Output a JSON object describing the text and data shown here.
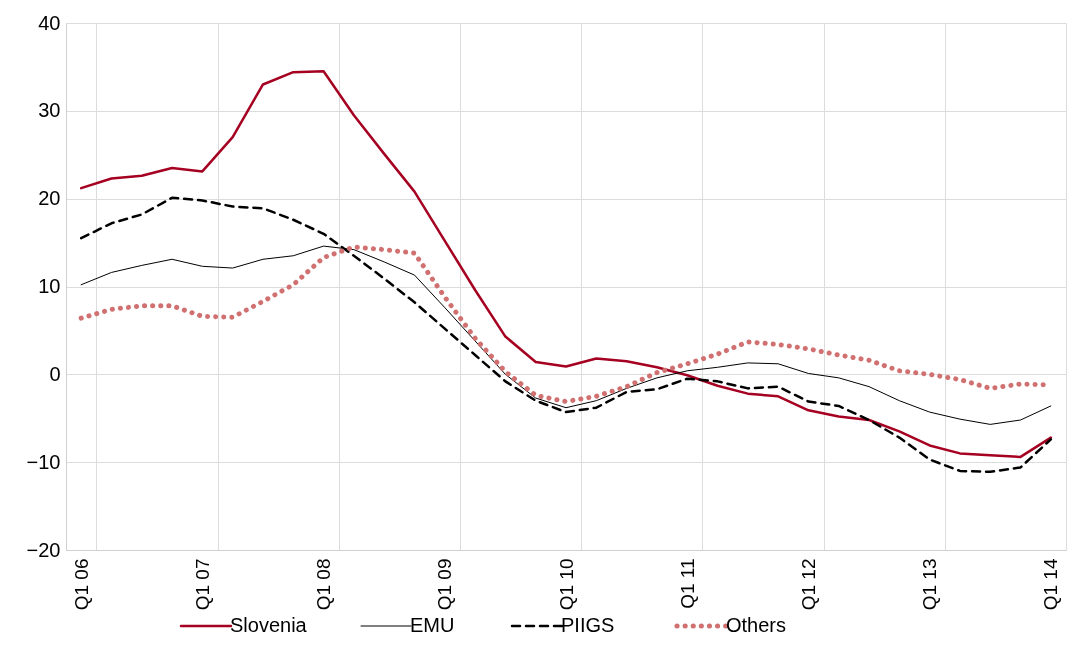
{
  "chart_data": {
    "type": "line",
    "categories": [
      "Q1 06",
      null,
      null,
      null,
      "Q1 07",
      null,
      null,
      null,
      "Q1 08",
      null,
      null,
      null,
      "Q1 09",
      null,
      null,
      null,
      "Q1 10",
      null,
      null,
      null,
      "Q1 11",
      null,
      null,
      null,
      "Q1 12",
      null,
      null,
      null,
      "Q1 13",
      null,
      null,
      null,
      "Q1 14"
    ],
    "series": [
      {
        "name": "Slovenia",
        "color": "#a50021",
        "line_style": "solid",
        "values": [
          21.2,
          22.3,
          22.6,
          23.5,
          23.1,
          27.0,
          33.0,
          34.4,
          34.5,
          29.5,
          25.1,
          20.8,
          15.2,
          9.6,
          4.3,
          1.4,
          0.9,
          1.8,
          1.5,
          0.8,
          -0.1,
          -1.3,
          -2.2,
          -2.5,
          -4.1,
          -4.8,
          -5.2,
          -6.5,
          -8.1,
          -9.0,
          -9.2,
          -9.4,
          -7.2
        ]
      },
      {
        "name": "EMU",
        "color": "#000000",
        "line_style": "solid",
        "values": [
          10.2,
          11.6,
          12.4,
          13.1,
          12.3,
          12.1,
          13.1,
          13.5,
          14.6,
          14.2,
          12.8,
          11.3,
          7.6,
          3.8,
          0.0,
          -2.7,
          -3.8,
          -3.0,
          -1.6,
          -0.4,
          0.4,
          0.8,
          1.3,
          1.2,
          0.1,
          -0.4,
          -1.4,
          -3.0,
          -4.3,
          -5.1,
          -5.7,
          -5.2,
          -3.6
        ]
      },
      {
        "name": "PIIGS",
        "color": "#000000",
        "line_style": "dashed",
        "values": [
          15.5,
          17.2,
          18.2,
          20.1,
          19.8,
          19.1,
          18.9,
          17.6,
          16.0,
          13.5,
          10.9,
          8.2,
          5.2,
          2.2,
          -0.8,
          -3.0,
          -4.3,
          -3.8,
          -2.0,
          -1.7,
          -0.5,
          -0.8,
          -1.6,
          -1.4,
          -3.1,
          -3.6,
          -5.2,
          -7.2,
          -9.7,
          -11.0,
          -11.1,
          -10.6,
          -7.4
        ]
      },
      {
        "name": "Others",
        "color": "#d07070",
        "line_style": "dotted",
        "values": [
          6.4,
          7.4,
          7.8,
          7.8,
          6.6,
          6.5,
          8.3,
          10.2,
          13.3,
          14.5,
          14.2,
          13.8,
          8.8,
          4.1,
          0.3,
          -2.4,
          -3.1,
          -2.5,
          -1.4,
          0.2,
          1.2,
          2.3,
          3.7,
          3.4,
          2.9,
          2.2,
          1.6,
          0.4,
          0.0,
          -0.6,
          -1.6,
          -1.1,
          -1.2
        ]
      }
    ],
    "ylim": [
      -20,
      40
    ],
    "yticks": [
      -20,
      -10,
      0,
      10,
      20,
      30,
      40
    ],
    "grid": true,
    "legend": "bottom"
  }
}
